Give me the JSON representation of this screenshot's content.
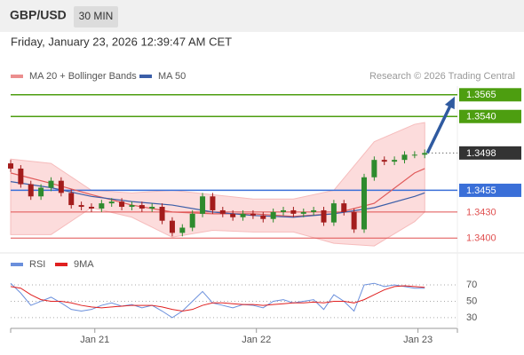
{
  "chart_data": {
    "type": "candlestick",
    "title": "GBP/USD",
    "timeframe": "30 MIN",
    "timestamp": "Friday, January 23, 2026 12:39:47 AM CET",
    "credit": "Research © 2026 Trading Central",
    "x": [
      0,
      3,
      6,
      9,
      12,
      15,
      18,
      21,
      24,
      27,
      30,
      33,
      36,
      39,
      42,
      45,
      48,
      51,
      54,
      57,
      60,
      63,
      66,
      69,
      72,
      75,
      78,
      81,
      84,
      87,
      90,
      93,
      96,
      99,
      102,
      105,
      108,
      111,
      114,
      117,
      120,
      123
    ],
    "xlim": [
      0,
      132.7
    ],
    "xticks": [
      {
        "value": 25,
        "label": "Jan 21"
      },
      {
        "value": 73,
        "label": "Jan 22"
      },
      {
        "value": 121,
        "label": "Jan 23"
      }
    ],
    "ylim": [
      1.3388,
      1.3575
    ],
    "up_color": "#2e8b2e",
    "down_color": "#a31c1c",
    "open": [
      1.3486,
      1.348,
      1.3462,
      1.3448,
      1.3458,
      1.3466,
      1.3452,
      1.3438,
      1.3436,
      1.3434,
      1.344,
      1.3442,
      1.3436,
      1.3438,
      1.3434,
      1.3436,
      1.342,
      1.3406,
      1.3412,
      1.3428,
      1.3448,
      1.3432,
      1.3428,
      1.3424,
      1.3428,
      1.3426,
      1.3422,
      1.343,
      1.3432,
      1.3428,
      1.343,
      1.3432,
      1.3418,
      1.344,
      1.343,
      1.341,
      1.347,
      1.349,
      1.3488,
      1.349,
      1.3496,
      1.3496
    ],
    "high": [
      1.349,
      1.3484,
      1.3466,
      1.3462,
      1.347,
      1.347,
      1.3456,
      1.3442,
      1.344,
      1.3444,
      1.3446,
      1.3446,
      1.3442,
      1.3442,
      1.344,
      1.344,
      1.3424,
      1.3416,
      1.3432,
      1.3452,
      1.3452,
      1.3436,
      1.3432,
      1.3432,
      1.3432,
      1.343,
      1.3434,
      1.3436,
      1.3436,
      1.3434,
      1.3436,
      1.3436,
      1.3444,
      1.3444,
      1.3434,
      1.3474,
      1.3494,
      1.3494,
      1.3494,
      1.35,
      1.35,
      1.3502
    ],
    "low": [
      1.3476,
      1.3458,
      1.3444,
      1.3444,
      1.3454,
      1.3448,
      1.3434,
      1.3432,
      1.343,
      1.343,
      1.3436,
      1.3432,
      1.3432,
      1.343,
      1.343,
      1.3416,
      1.3402,
      1.3402,
      1.3408,
      1.3424,
      1.3428,
      1.3424,
      1.342,
      1.342,
      1.3422,
      1.3418,
      1.3418,
      1.3426,
      1.3424,
      1.3424,
      1.3426,
      1.3414,
      1.3414,
      1.3426,
      1.3406,
      1.3406,
      1.3466,
      1.3484,
      1.3484,
      1.3486,
      1.3492,
      1.3492
    ],
    "close": [
      1.348,
      1.3462,
      1.3448,
      1.3458,
      1.3466,
      1.3452,
      1.3438,
      1.3436,
      1.3434,
      1.344,
      1.3442,
      1.3436,
      1.3438,
      1.3434,
      1.3436,
      1.342,
      1.3406,
      1.3412,
      1.3428,
      1.3448,
      1.3432,
      1.3428,
      1.3424,
      1.3428,
      1.3426,
      1.3422,
      1.343,
      1.3432,
      1.3428,
      1.343,
      1.3432,
      1.3418,
      1.344,
      1.343,
      1.341,
      1.347,
      1.349,
      1.3488,
      1.349,
      1.3496,
      1.3496,
      1.3498
    ],
    "indicators": {
      "x": [
        0,
        12,
        24,
        36,
        48,
        60,
        72,
        84,
        96,
        108,
        120,
        123
      ],
      "series": [
        {
          "name": "MA 20 + Bollinger Bands",
          "color": "#e05a5a",
          "band_color": "#fcdcdc",
          "values": [
            1.3475,
            1.3463,
            1.345,
            1.3438,
            1.343,
            1.3428,
            1.3428,
            1.3425,
            1.3428,
            1.344,
            1.3475,
            1.348
          ],
          "band_upper": [
            1.3491,
            1.3486,
            1.3455,
            1.3452,
            1.3455,
            1.345,
            1.3445,
            1.3445,
            1.3455,
            1.3511,
            1.3531,
            1.3533
          ],
          "band_lower": [
            1.3404,
            1.3404,
            1.3435,
            1.3424,
            1.3401,
            1.3409,
            1.3407,
            1.3407,
            1.3394,
            1.3391,
            1.3419,
            1.343
          ]
        },
        {
          "name": "MA 50",
          "color": "#3b5ea8",
          "values": [
            1.3465,
            1.3458,
            1.3448,
            1.3442,
            1.3438,
            1.343,
            1.3426,
            1.3424,
            1.3428,
            1.3435,
            1.3448,
            1.3452
          ]
        }
      ]
    },
    "levels": [
      {
        "price": 1.3565,
        "color": "#4d9e10",
        "style": "box",
        "line": "solid"
      },
      {
        "price": {
          "value": 1.354,
          "label": "1.3540"
        },
        "color": "#4d9e10",
        "style": "box",
        "line": "solid"
      },
      {
        "price": 1.3498,
        "color": "#333333",
        "style": "box",
        "line": "dotted"
      },
      {
        "price": 1.3455,
        "color": "#3a6fd8",
        "style": "box",
        "line": "solid"
      },
      {
        "price": {
          "value": 1.343,
          "label": "1.3430"
        },
        "color": "#e05050",
        "style": "text",
        "line": "solid"
      },
      {
        "price": {
          "value": 1.34,
          "label": "1.3400"
        },
        "color": "#e05050",
        "style": "text",
        "line": "solid"
      }
    ],
    "rsi": {
      "ylim": [
        19,
        82
      ],
      "yticks": [
        70,
        50,
        30
      ],
      "series": [
        {
          "name": "RSI",
          "color": "#6a8fdc",
          "values": [
            72,
            60,
            45,
            50,
            55,
            48,
            40,
            38,
            40,
            45,
            48,
            44,
            46,
            42,
            45,
            38,
            30,
            38,
            50,
            62,
            48,
            45,
            42,
            46,
            45,
            42,
            50,
            52,
            48,
            50,
            52,
            40,
            58,
            50,
            38,
            70,
            72,
            68,
            70,
            68,
            66,
            66
          ]
        },
        {
          "name": "9MA",
          "color": "#e02020",
          "values": [
            68,
            66,
            58,
            52,
            50,
            50,
            48,
            45,
            43,
            42,
            43,
            44,
            45,
            45,
            45,
            43,
            40,
            38,
            40,
            45,
            48,
            48,
            47,
            46,
            46,
            45,
            46,
            47,
            48,
            48,
            49,
            48,
            50,
            50,
            48,
            52,
            58,
            64,
            68,
            69,
            68,
            67
          ]
        }
      ]
    }
  }
}
